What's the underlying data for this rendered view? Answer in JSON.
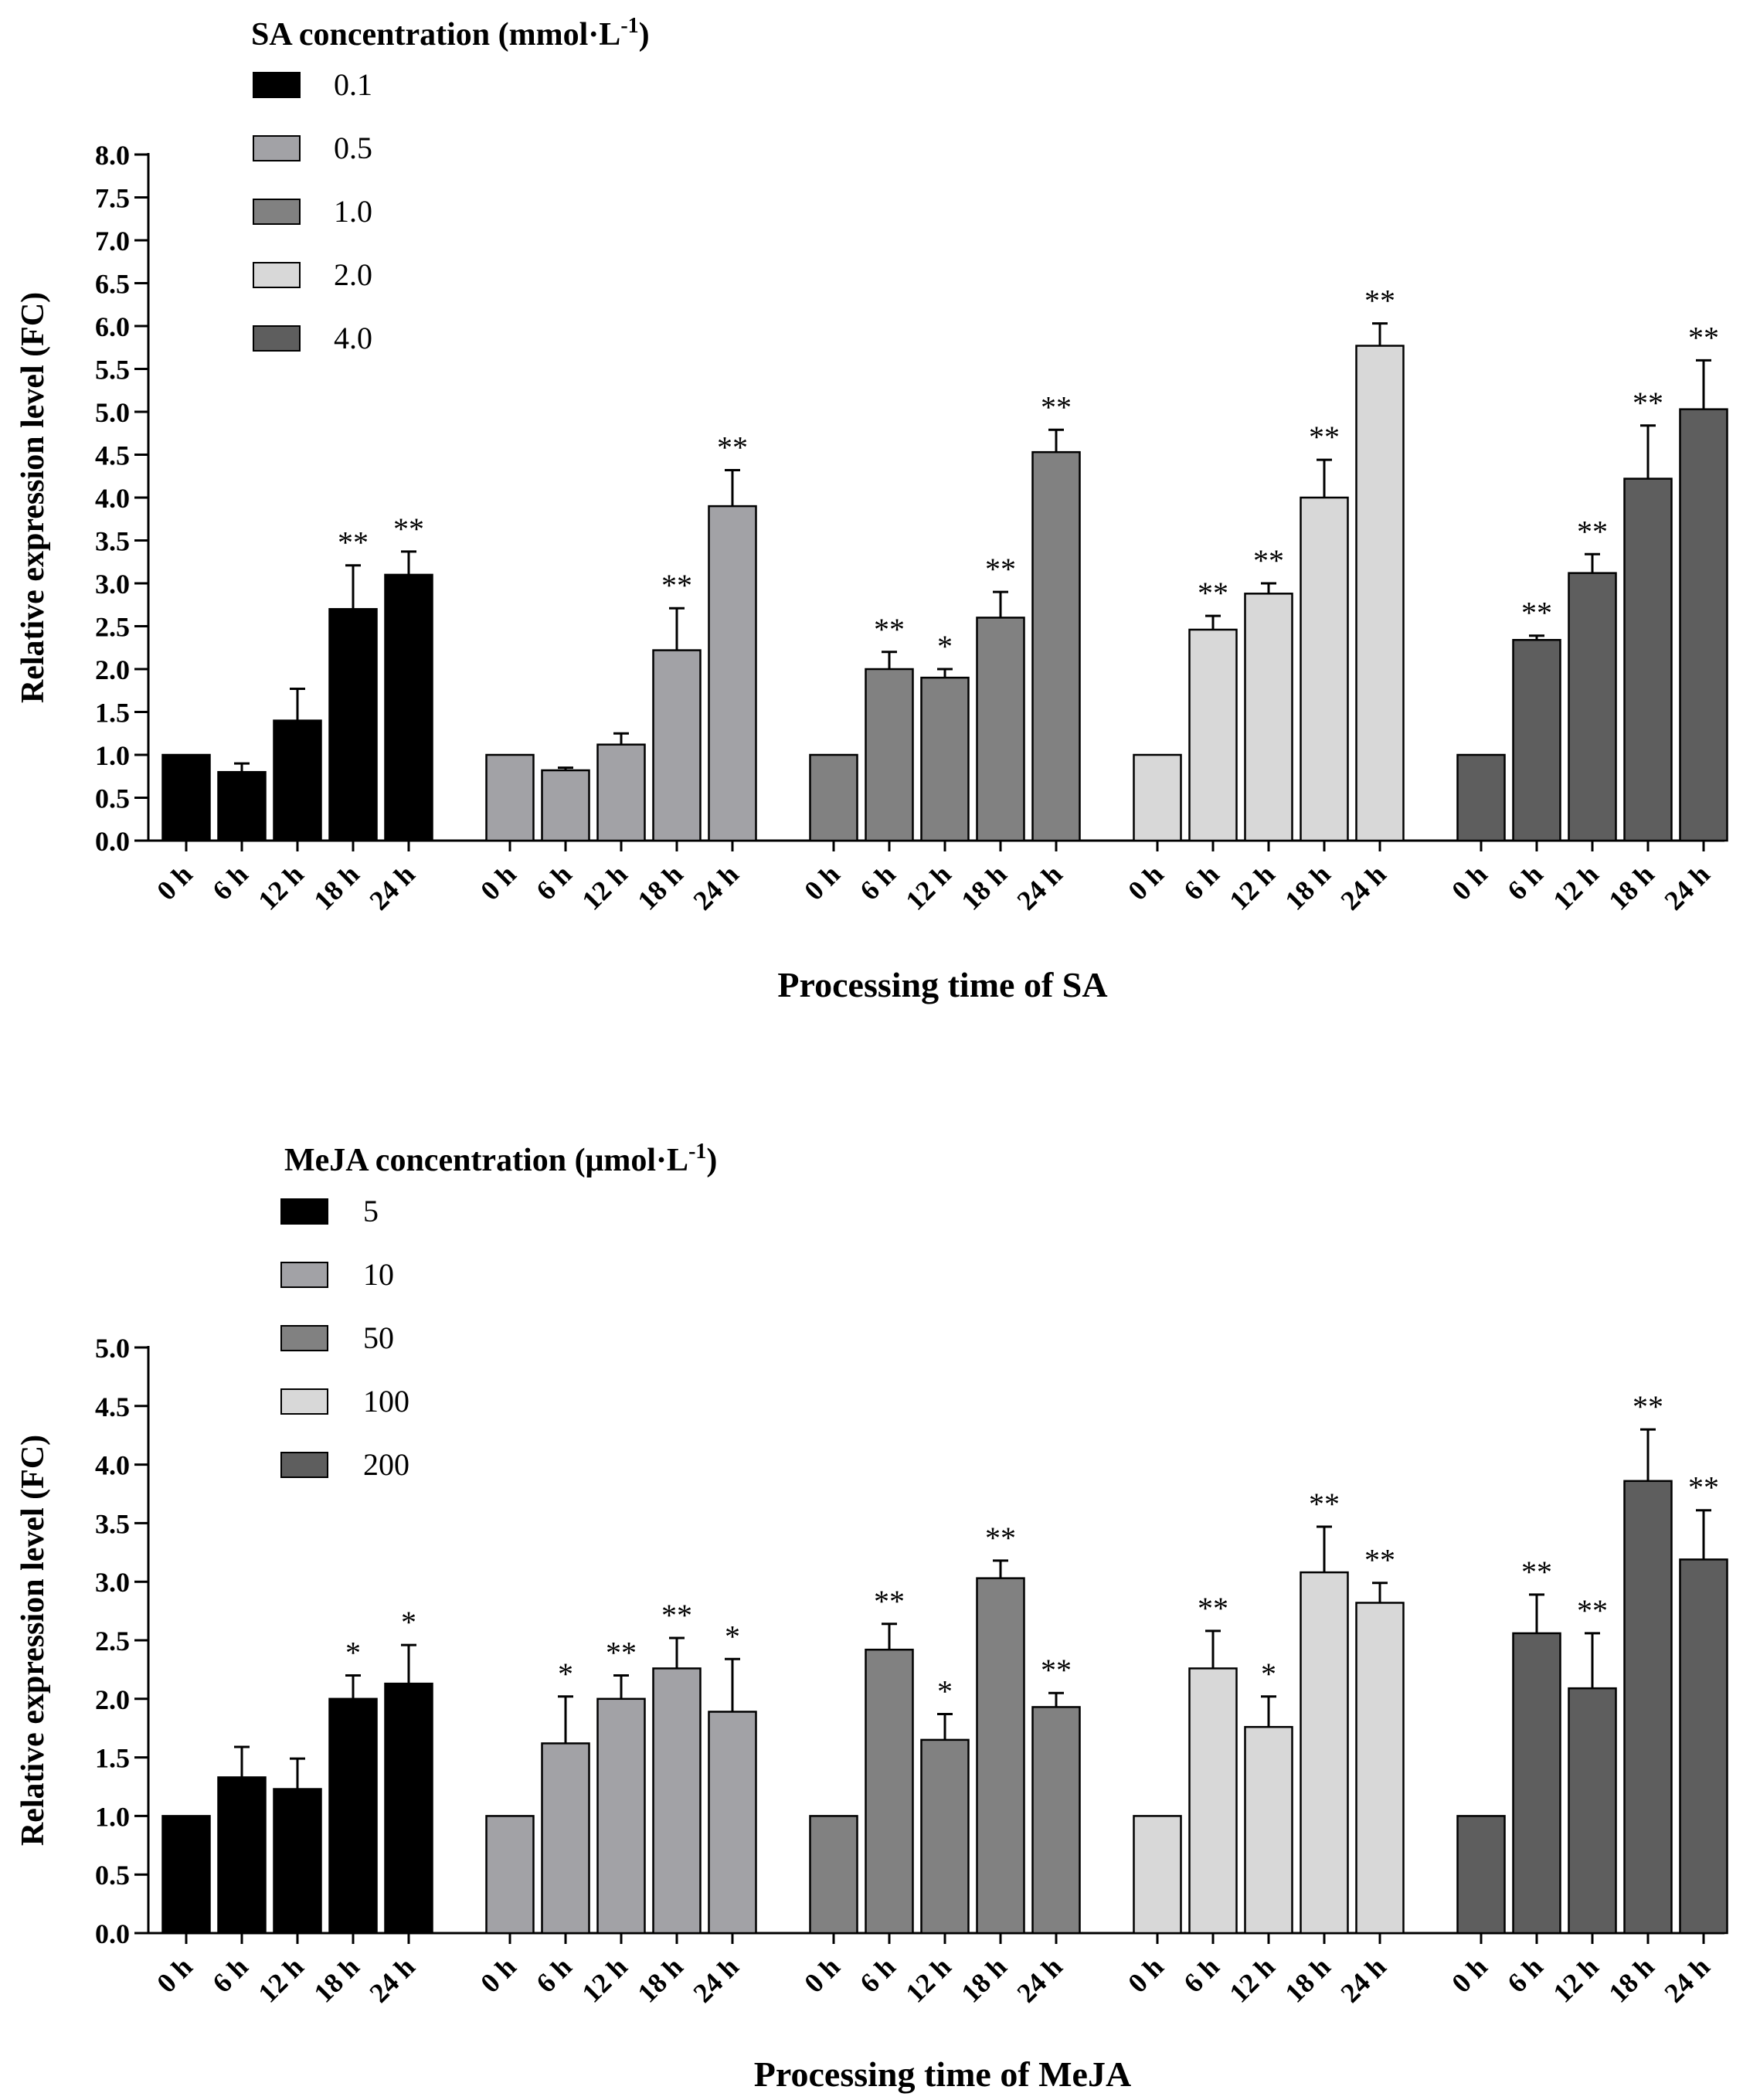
{
  "chart_data": [
    {
      "type": "bar",
      "legend_title_main": "SA concentration (mmol·L",
      "legend_title_sup": "-1",
      "legend_title_end": ")",
      "legend_placement": "top-left",
      "ylabel": "Relative expression level (FC)",
      "xlabel": "Processing time of SA",
      "ylim": [
        0,
        8
      ],
      "ytick_step": 0.5,
      "ytick_labels": [
        "0.0",
        "0.5",
        "1.0",
        "1.5",
        "2.0",
        "2.5",
        "3.0",
        "3.5",
        "4.0",
        "4.5",
        "5.0",
        "5.5",
        "6.0",
        "6.5",
        "7.0",
        "7.5",
        "8.0"
      ],
      "categories": [
        "0 h",
        "6 h",
        "12 h",
        "18 h",
        "24 h"
      ],
      "series": [
        {
          "name": "0.1",
          "color": "#000000",
          "values": [
            1.0,
            0.8,
            1.4,
            2.7,
            3.1
          ],
          "errors": [
            0,
            0.1,
            0.37,
            0.51,
            0.27
          ],
          "sig": [
            "",
            "",
            "",
            "**",
            "**"
          ]
        },
        {
          "name": "0.5",
          "color": "#a2a2a6",
          "values": [
            1.0,
            0.82,
            1.12,
            2.22,
            3.9
          ],
          "errors": [
            0,
            0.03,
            0.13,
            0.49,
            0.42
          ],
          "sig": [
            "",
            "",
            "",
            "**",
            "**"
          ]
        },
        {
          "name": "1.0",
          "color": "#818181",
          "values": [
            1.0,
            2.0,
            1.9,
            2.6,
            4.53
          ],
          "errors": [
            0,
            0.2,
            0.1,
            0.3,
            0.26
          ],
          "sig": [
            "",
            "**",
            "*",
            "**",
            "**"
          ]
        },
        {
          "name": "2.0",
          "color": "#d8d8d8",
          "values": [
            1.0,
            2.46,
            2.88,
            4.0,
            5.77
          ],
          "errors": [
            0,
            0.16,
            0.12,
            0.44,
            0.26
          ],
          "sig": [
            "",
            "**",
            "**",
            "**",
            "**"
          ]
        },
        {
          "name": "4.0",
          "color": "#5e5e5e",
          "values": [
            1.0,
            2.34,
            3.12,
            4.22,
            5.03
          ],
          "errors": [
            0,
            0.05,
            0.22,
            0.62,
            0.57
          ],
          "sig": [
            "",
            "**",
            "**",
            "**",
            "**"
          ]
        }
      ]
    },
    {
      "type": "bar",
      "legend_title_main": "MeJA concentration (μmol·L",
      "legend_title_sup": "-1",
      "legend_title_end": ")",
      "legend_placement": "top-left",
      "ylabel": "Relative expression level (FC)",
      "xlabel": "Processing time of MeJA",
      "ylim": [
        0,
        5
      ],
      "ytick_step": 0.5,
      "ytick_labels": [
        "0.0",
        "0.5",
        "1.0",
        "1.5",
        "2.0",
        "2.5",
        "3.0",
        "3.5",
        "4.0",
        "4.5",
        "5.0"
      ],
      "categories": [
        "0 h",
        "6 h",
        "12 h",
        "18 h",
        "24 h"
      ],
      "series": [
        {
          "name": "5",
          "color": "#000000",
          "values": [
            1.0,
            1.33,
            1.23,
            2.0,
            2.13
          ],
          "errors": [
            0,
            0.26,
            0.26,
            0.2,
            0.33
          ],
          "sig": [
            "",
            "",
            "",
            "*",
            "*"
          ]
        },
        {
          "name": "10",
          "color": "#a2a2a6",
          "values": [
            1.0,
            1.62,
            2.0,
            2.26,
            1.89
          ],
          "errors": [
            0,
            0.4,
            0.2,
            0.26,
            0.45
          ],
          "sig": [
            "",
            "*",
            "**",
            "**",
            "*"
          ]
        },
        {
          "name": "50",
          "color": "#818181",
          "values": [
            1.0,
            2.42,
            1.65,
            3.03,
            1.93
          ],
          "errors": [
            0,
            0.22,
            0.22,
            0.15,
            0.12
          ],
          "sig": [
            "",
            "**",
            "*",
            "**",
            "**"
          ]
        },
        {
          "name": "100",
          "color": "#d8d8d8",
          "values": [
            1.0,
            2.26,
            1.76,
            3.08,
            2.82
          ],
          "errors": [
            0,
            0.32,
            0.26,
            0.39,
            0.17
          ],
          "sig": [
            "",
            "**",
            "*",
            "**",
            "**"
          ]
        },
        {
          "name": "200",
          "color": "#5e5e5e",
          "values": [
            1.0,
            2.56,
            2.09,
            3.86,
            3.19
          ],
          "errors": [
            0,
            0.33,
            0.47,
            0.44,
            0.42
          ],
          "sig": [
            "",
            "**",
            "**",
            "**",
            "**"
          ]
        }
      ]
    }
  ]
}
